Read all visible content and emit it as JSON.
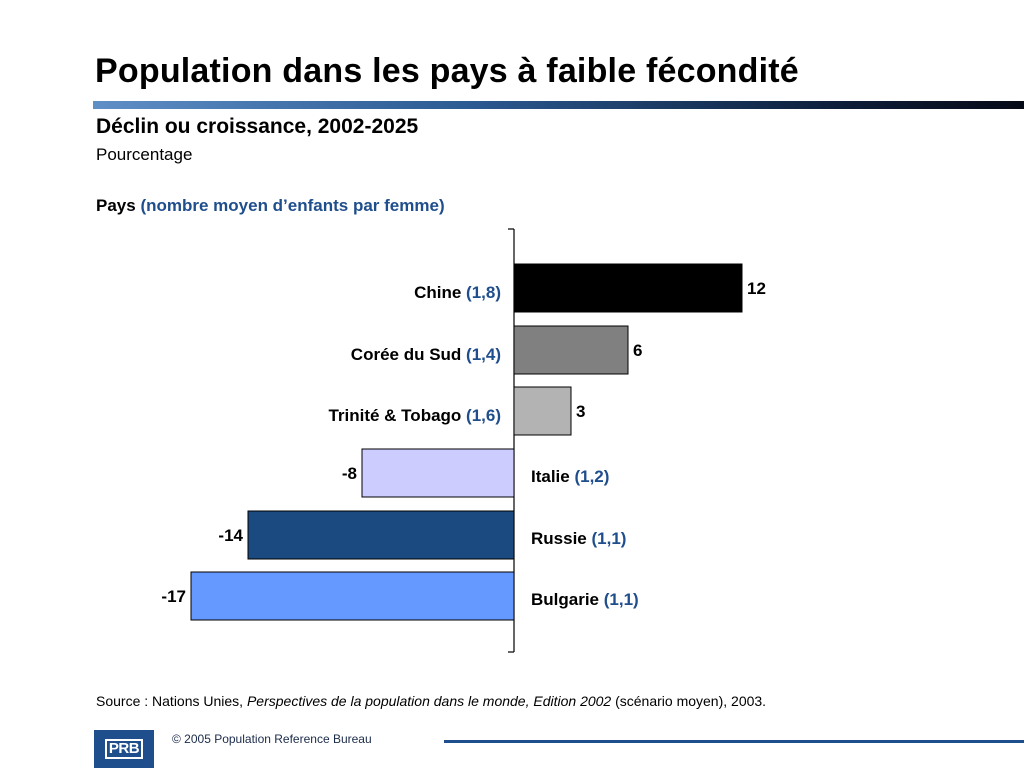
{
  "page": {
    "title": "Population dans les pays à faible fécondité",
    "subtitle": "Déclin ou croissance, 2002-2025",
    "unit": "Pourcentage",
    "axis_caption_bold": "Pays",
    "axis_caption_note": "(nombre moyen d’enfants par femme)",
    "source_prefix": "Source : Nations Unies, ",
    "source_title": "Perspectives de la population dans le monde, Edition 2002",
    "source_suffix": " (scénario moyen), 2003.",
    "copyright": "© 2005 Population Reference Bureau",
    "logo_text": "PRB"
  },
  "colors": {
    "accent_blue": "#1f4e8c"
  },
  "chart_data": {
    "type": "bar",
    "orientation": "horizontal",
    "categories": [
      "Chine",
      "Corée du Sud",
      "Trinité & Tobago",
      "Italie",
      "Russie",
      "Bulgarie"
    ],
    "notes": [
      "(1,8)",
      "(1,4)",
      "(1,6)",
      "(1,2)",
      "(1,1)",
      "(1,1)"
    ],
    "values": [
      12,
      6,
      3,
      -8,
      -14,
      -17
    ],
    "value_labels": [
      "12",
      "6",
      "3",
      "-8",
      "-14",
      "-17"
    ],
    "colors": [
      "#000000",
      "#808080",
      "#b3b3b3",
      "#ccccff",
      "#1a4a80",
      "#6699ff"
    ],
    "xlim": [
      -17,
      12
    ]
  }
}
